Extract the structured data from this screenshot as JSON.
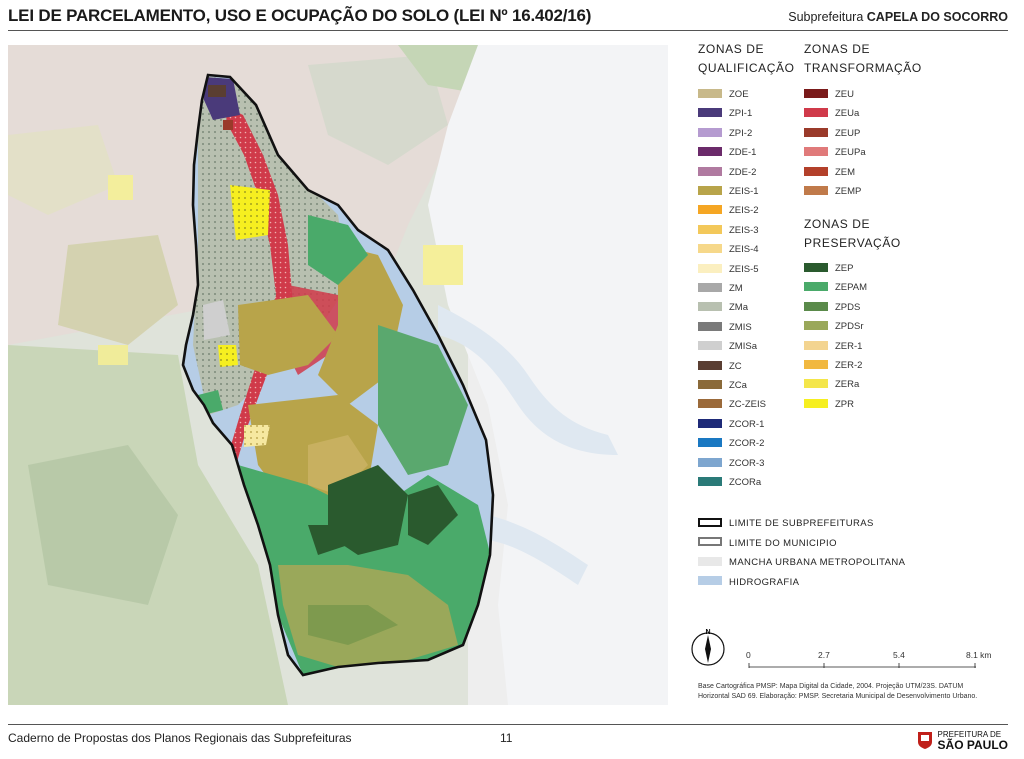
{
  "header": {
    "title": "LEI DE PARCELAMENTO, USO E OCUPAÇÃO DO SOLO (LEI Nº 16.402/16)",
    "subtitle_prefix": "Subprefeitura",
    "subtitle_name": "CAPELA DO SOCORRO"
  },
  "legend": {
    "qualificacao": {
      "heading_line1": "ZONAS DE",
      "heading_line2": "QUALIFICAÇÃO",
      "items": [
        {
          "label": "ZOE",
          "color": "#c8b98a"
        },
        {
          "label": "ZPI-1",
          "color": "#4a3a7a"
        },
        {
          "label": "ZPI-2",
          "color": "#b59bd0"
        },
        {
          "label": "ZDE-1",
          "color": "#6b2a6a"
        },
        {
          "label": "ZDE-2",
          "color": "#b07aa0"
        },
        {
          "label": "ZEIS-1",
          "color": "#b8a44a"
        },
        {
          "label": "ZEIS-2",
          "color": "#f5a623"
        },
        {
          "label": "ZEIS-3",
          "color": "#f3c85a"
        },
        {
          "label": "ZEIS-4",
          "color": "#f6d88a"
        },
        {
          "label": "ZEIS-5",
          "color": "#fbefc0"
        },
        {
          "label": "ZM",
          "color": "#a8a8a8"
        },
        {
          "label": "ZMa",
          "color": "#b8c0b0"
        },
        {
          "label": "ZMIS",
          "color": "#7a7a7a"
        },
        {
          "label": "ZMISa",
          "color": "#cfcfcf"
        },
        {
          "label": "ZC",
          "color": "#5a3e32"
        },
        {
          "label": "ZCa",
          "color": "#8a6a3a"
        },
        {
          "label": "ZC-ZEIS",
          "color": "#9b6a3a"
        },
        {
          "label": "ZCOR-1",
          "color": "#1e2a78"
        },
        {
          "label": "ZCOR-2",
          "color": "#1a78c2"
        },
        {
          "label": "ZCOR-3",
          "color": "#7ea6cf"
        },
        {
          "label": "ZCORa",
          "color": "#2a7a78"
        }
      ]
    },
    "transformacao": {
      "heading_line1": "ZONAS DE",
      "heading_line2": "TRANSFORMAÇÃO",
      "items": [
        {
          "label": "ZEU",
          "color": "#7a1a1a"
        },
        {
          "label": "ZEUa",
          "color": "#d03a4a"
        },
        {
          "label": "ZEUP",
          "color": "#9a3a2a"
        },
        {
          "label": "ZEUPa",
          "color": "#e07a7a"
        },
        {
          "label": "ZEM",
          "color": "#b3402a"
        },
        {
          "label": "ZEMP",
          "color": "#c07a4a"
        }
      ]
    },
    "preservacao": {
      "heading_line1": "ZONAS DE",
      "heading_line2": "PRESERVAÇÃO",
      "items": [
        {
          "label": "ZEP",
          "color": "#2a5a2e"
        },
        {
          "label": "ZEPAM",
          "color": "#4aaa6a"
        },
        {
          "label": "ZPDS",
          "color": "#5a8a4a"
        },
        {
          "label": "ZPDSr",
          "color": "#9aa85a"
        },
        {
          "label": "ZER-1",
          "color": "#f3d490"
        },
        {
          "label": "ZER-2",
          "color": "#f1b840"
        },
        {
          "label": "ZERa",
          "color": "#f4e64a"
        },
        {
          "label": "ZPR",
          "color": "#f6ef20"
        }
      ]
    },
    "limits": [
      {
        "label": "LIMITE DE SUBPREFEITURAS",
        "style": "thick-black"
      },
      {
        "label": "LIMITE DO MUNICIPIO",
        "style": "thin-gray"
      },
      {
        "label": "MANCHA URBANA METROPOLITANA",
        "color": "#e8e8e8"
      },
      {
        "label": "HIDROGRAFIA",
        "color": "#b6cde6"
      }
    ]
  },
  "scale": {
    "ticks": [
      "0",
      "2.7",
      "5.4",
      "8.1 km"
    ],
    "north_label": "N"
  },
  "credits": {
    "line1": "Base Cartográfica PMSP: Mapa Digital da Cidade, 2004. Projeção UTM/23S. DATUM",
    "line2": "Horizontal SAD 69. Elaboração: PMSP. Secretaria Municipal de Desenvolvimento Urbano."
  },
  "footer": {
    "left": "Caderno de Propostas dos Planos Regionais das Subprefeituras",
    "page": "11",
    "logo_line1": "PREFEITURA DE",
    "logo_line2": "SÃO PAULO"
  }
}
